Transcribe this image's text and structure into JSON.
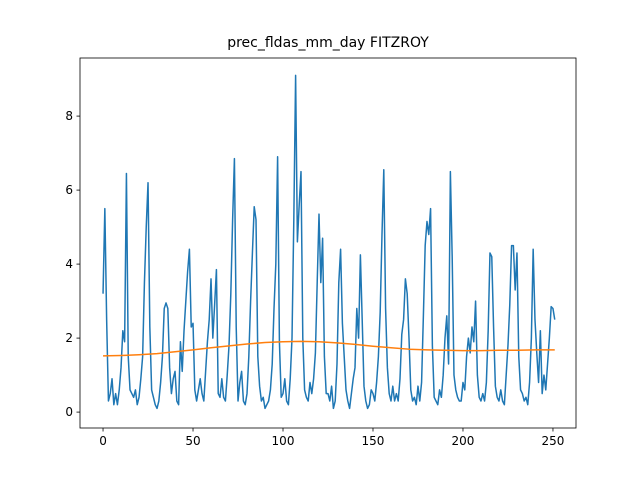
{
  "chart_data": {
    "type": "line",
    "title": "prec_fldas_mm_day FITZROY",
    "xlim": [
      -12.8,
      262.8
    ],
    "ylim": [
      -0.43,
      9.57
    ],
    "xticks": [
      0,
      50,
      100,
      150,
      200,
      250
    ],
    "yticks": [
      0,
      2,
      4,
      6,
      8
    ],
    "series": [
      {
        "color": "#1f77b4",
        "x": [
          0,
          1,
          2,
          3,
          4,
          5,
          6,
          7,
          8,
          9,
          10,
          11,
          12,
          13,
          14,
          15,
          16,
          17,
          18,
          19,
          20,
          21,
          22,
          23,
          24,
          25,
          26,
          27,
          28,
          29,
          30,
          31,
          32,
          33,
          34,
          35,
          36,
          37,
          38,
          39,
          40,
          41,
          42,
          43,
          44,
          45,
          46,
          47,
          48,
          49,
          50,
          51,
          52,
          53,
          54,
          55,
          56,
          57,
          58,
          59,
          60,
          61,
          62,
          63,
          64,
          65,
          66,
          67,
          68,
          69,
          70,
          71,
          72,
          73,
          74,
          75,
          76,
          77,
          78,
          79,
          80,
          81,
          82,
          83,
          84,
          85,
          86,
          87,
          88,
          89,
          90,
          91,
          92,
          93,
          94,
          95,
          96,
          97,
          98,
          99,
          100,
          101,
          102,
          103,
          104,
          105,
          106,
          107,
          108,
          109,
          110,
          111,
          112,
          113,
          114,
          115,
          116,
          117,
          118,
          119,
          120,
          121,
          122,
          123,
          124,
          125,
          126,
          127,
          128,
          129,
          130,
          131,
          132,
          133,
          134,
          135,
          136,
          137,
          138,
          139,
          140,
          141,
          142,
          143,
          144,
          145,
          146,
          147,
          148,
          149,
          150,
          151,
          152,
          153,
          154,
          155,
          156,
          157,
          158,
          159,
          160,
          161,
          162,
          163,
          164,
          165,
          166,
          167,
          168,
          169,
          170,
          171,
          172,
          173,
          174,
          175,
          176,
          177,
          178,
          179,
          180,
          181,
          182,
          183,
          184,
          185,
          186,
          187,
          188,
          189,
          190,
          191,
          192,
          193,
          194,
          195,
          196,
          197,
          198,
          199,
          200,
          201,
          202,
          203,
          204,
          205,
          206,
          207,
          208,
          209,
          210,
          211,
          212,
          213,
          214,
          215,
          216,
          217,
          218,
          219,
          220,
          221,
          222,
          223,
          224,
          225,
          226,
          227,
          228,
          229,
          230,
          231,
          232,
          233,
          234,
          235,
          236,
          237,
          238,
          239,
          240,
          241,
          242,
          243,
          244,
          245,
          246,
          247,
          248,
          249,
          250,
          251
        ],
        "values": [
          3.2,
          5.5,
          2.5,
          0.3,
          0.5,
          0.9,
          0.2,
          0.5,
          0.2,
          0.6,
          1.2,
          2.2,
          1.9,
          6.45,
          1.5,
          0.6,
          0.5,
          0.4,
          0.6,
          0.2,
          0.4,
          0.9,
          1.5,
          3.5,
          5.0,
          6.2,
          2.3,
          0.6,
          0.4,
          0.2,
          0.1,
          0.3,
          0.8,
          1.5,
          2.8,
          2.95,
          2.8,
          1.2,
          0.5,
          0.9,
          1.1,
          0.3,
          0.2,
          1.9,
          1.1,
          2.2,
          3.0,
          3.8,
          4.4,
          2.3,
          2.4,
          0.6,
          0.3,
          0.6,
          0.9,
          0.5,
          0.3,
          1.1,
          1.9,
          2.5,
          3.6,
          2.0,
          2.9,
          3.85,
          0.5,
          0.4,
          0.9,
          0.4,
          0.3,
          1.0,
          1.8,
          3.2,
          5.2,
          6.85,
          2.3,
          0.3,
          0.8,
          1.1,
          0.3,
          0.2,
          0.5,
          1.5,
          3.0,
          4.3,
          5.55,
          5.2,
          1.5,
          0.7,
          0.3,
          0.4,
          0.1,
          0.2,
          0.3,
          0.6,
          1.3,
          2.8,
          4.0,
          6.9,
          1.9,
          0.4,
          0.5,
          0.9,
          0.3,
          0.2,
          0.9,
          2.0,
          5.2,
          9.1,
          4.6,
          5.6,
          6.5,
          2.0,
          0.6,
          0.4,
          0.3,
          0.8,
          0.5,
          0.9,
          1.6,
          3.5,
          5.35,
          3.5,
          4.7,
          1.5,
          0.5,
          0.5,
          0.3,
          0.7,
          0.1,
          0.3,
          1.3,
          3.5,
          4.4,
          2.4,
          1.5,
          0.6,
          0.3,
          0.1,
          0.5,
          0.9,
          1.2,
          2.8,
          2.0,
          4.25,
          2.5,
          0.7,
          0.3,
          0.1,
          0.2,
          0.6,
          0.5,
          0.3,
          0.8,
          1.5,
          2.7,
          4.8,
          6.55,
          2.8,
          1.2,
          0.5,
          0.3,
          0.7,
          0.3,
          0.5,
          0.3,
          0.9,
          2.1,
          2.5,
          3.6,
          3.2,
          2.0,
          0.6,
          0.3,
          0.4,
          0.2,
          0.7,
          0.3,
          0.8,
          2.6,
          4.5,
          5.15,
          4.8,
          5.5,
          1.8,
          0.4,
          0.3,
          0.2,
          0.6,
          0.4,
          1.0,
          2.0,
          2.6,
          1.3,
          6.5,
          4.2,
          1.0,
          0.6,
          0.4,
          0.3,
          0.3,
          0.8,
          0.6,
          1.5,
          2.0,
          1.6,
          2.3,
          1.9,
          3.0,
          1.0,
          0.4,
          0.3,
          0.5,
          0.3,
          0.8,
          2.2,
          4.3,
          4.2,
          2.3,
          0.7,
          0.4,
          0.3,
          0.6,
          0.3,
          0.2,
          1.0,
          1.8,
          2.9,
          4.5,
          4.5,
          3.3,
          4.3,
          1.5,
          0.6,
          0.5,
          0.3,
          0.4,
          0.2,
          0.8,
          2.0,
          4.4,
          2.5,
          1.6,
          0.8,
          2.2,
          0.5,
          1.0,
          0.6,
          1.3,
          2.0,
          2.85,
          2.8,
          2.5
        ]
      },
      {
        "color": "#ff7f0e",
        "x": [
          0,
          10,
          20,
          30,
          40,
          50,
          60,
          70,
          80,
          90,
          100,
          110,
          120,
          130,
          140,
          150,
          160,
          170,
          180,
          190,
          200,
          210,
          220,
          230,
          240,
          250,
          251
        ],
        "values": [
          1.52,
          1.53,
          1.55,
          1.58,
          1.63,
          1.68,
          1.74,
          1.79,
          1.84,
          1.88,
          1.9,
          1.91,
          1.9,
          1.87,
          1.83,
          1.78,
          1.74,
          1.7,
          1.68,
          1.67,
          1.66,
          1.66,
          1.67,
          1.67,
          1.68,
          1.68,
          1.68
        ]
      }
    ]
  }
}
